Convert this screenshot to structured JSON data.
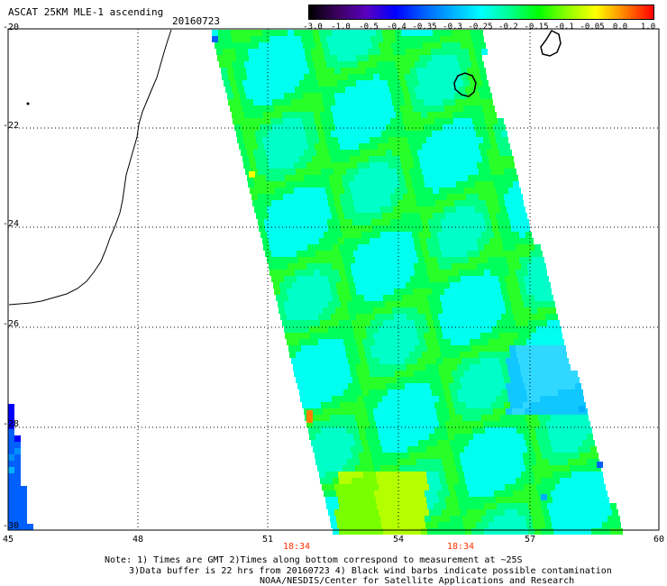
{
  "header": {
    "title": "ASCAT 25KM MLE-1 ascending",
    "date": "20160723"
  },
  "colorbar": {
    "labels": [
      "-3.0",
      "-1.0",
      "-0.5",
      "-0.4",
      "-0.35",
      "-0.3",
      "-0.25",
      "-0.2",
      "-0.15",
      "-0.1",
      "-0.05",
      "0.0",
      "1.0"
    ],
    "colors": [
      "#000000",
      "#3c0060",
      "#5a00c0",
      "#0000ff",
      "#0060ff",
      "#00b0ff",
      "#00ffff",
      "#00ff90",
      "#00ff00",
      "#90ff00",
      "#ffff00",
      "#ff8000",
      "#ff0000"
    ]
  },
  "axes": {
    "lat_labels": [
      "-20",
      "-22",
      "-24",
      "-26",
      "-28",
      "-30"
    ],
    "lon_labels": [
      "45",
      "48",
      "51",
      "54",
      "57",
      "60"
    ],
    "time_labels": [
      "18:34",
      "18:34"
    ]
  },
  "notes": {
    "line1": "Note: 1) Times are GMT 2)Times along bottom correspond to measurement at ~25S",
    "line2": "3)Data buffer is 22 hrs from 20160723 4) Black wind barbs indicate possible contamination",
    "line3": "NOAA/NESDIS/Center for Satellite Applications and Research"
  }
}
